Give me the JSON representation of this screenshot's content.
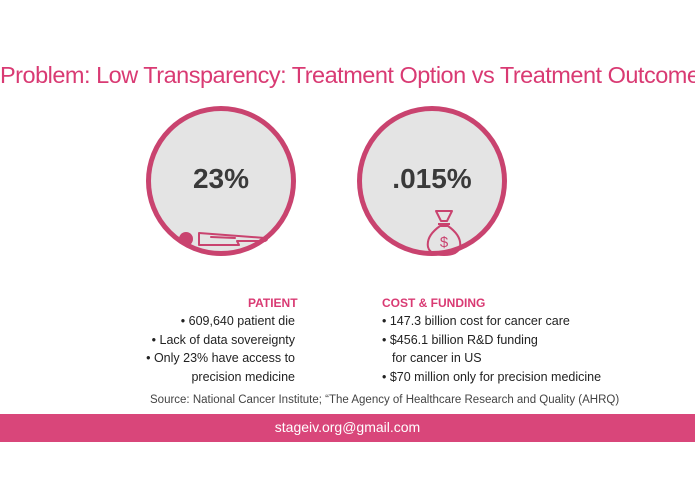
{
  "title": "Problem: Low Transparency: Treatment Option vs Treatment Outcome",
  "patient": {
    "stat": "23%",
    "icon": "lying-person-icon",
    "heading": "PATIENT",
    "bullets": [
      "• 609,640 patient die",
      "• Lack of data sovereignty",
      "• Only 23% have access to",
      "precision medicine"
    ]
  },
  "cost": {
    "stat": ".015%",
    "icon": "money-bag-icon",
    "heading": "COST & FUNDING",
    "bullets": [
      "• 147.3 billion cost for cancer care",
      "• $456.1 billion R&D funding",
      "for cancer in US",
      "• $70 million only for precision medicine"
    ]
  },
  "source": "Source: National Cancer Institute; “The Agency of Healthcare Research and Quality (AHRQ)",
  "footer": {
    "email": "stageiv.org@gmail.com"
  },
  "colors": {
    "accent": "#d93a73",
    "circle_border": "#c9436f",
    "circle_fill": "#e4e4e4",
    "footer": "#d9467a"
  }
}
